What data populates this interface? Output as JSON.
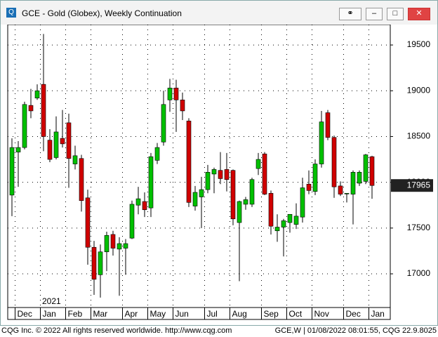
{
  "chart_data": {
    "type": "candlestick",
    "title": "GCE - Gold (Globex), Weekly Continuation",
    "footer_left": "CQG Inc. © 2022 All rights reserved worldwide. http://www.cqg.com",
    "footer_right": "GCE,W | 01/08/2022 08:01:55, CQG 22.9.8025",
    "year_label": "2021",
    "up_color": "#00c000",
    "down_color": "#d00000",
    "grid": true,
    "ylim": [
      16632,
      19723
    ],
    "yticks": [
      17000,
      17500,
      18000,
      18500,
      19000,
      19500
    ],
    "xticks": [
      {
        "value": 1,
        "label": "Dec"
      },
      {
        "value": 5,
        "label": "Jan"
      },
      {
        "value": 9,
        "label": "Feb"
      },
      {
        "value": 13,
        "label": "Mar"
      },
      {
        "value": 18,
        "label": "Apr"
      },
      {
        "value": 22,
        "label": "May"
      },
      {
        "value": 26,
        "label": "Jun"
      },
      {
        "value": 31,
        "label": "Jul"
      },
      {
        "value": 35,
        "label": "Aug"
      },
      {
        "value": 40,
        "label": "Sep"
      },
      {
        "value": 44,
        "label": "Oct"
      },
      {
        "value": 48,
        "label": "Nov"
      },
      {
        "value": 53,
        "label": "Dec"
      },
      {
        "value": 57,
        "label": "Jan"
      }
    ],
    "open": [
      17860,
      18330,
      18380,
      18840,
      18920,
      19070,
      18460,
      18270,
      18480,
      18650,
      18200,
      18260,
      17830,
      17290,
      16990,
      17240,
      17430,
      17270,
      17280,
      17390,
      17750,
      17790,
      17720,
      18240,
      18440,
      18900,
      19030,
      18900,
      18670,
      17740,
      17840,
      17920,
      18090,
      18130,
      18140,
      18130,
      17560,
      17760,
      17760,
      18150,
      18310,
      17880,
      17470,
      17510,
      17560,
      17540,
      17620,
      17980,
      17900,
      18200,
      18760,
      18490,
      17960,
      17880,
      17870,
      17990,
      18010,
      18280
    ],
    "high": [
      18480,
      18450,
      18880,
      19020,
      19070,
      19620,
      18580,
      18720,
      18790,
      18750,
      18400,
      18300,
      17920,
      17360,
      17320,
      17460,
      17470,
      17400,
      17380,
      17800,
      17950,
      17890,
      18320,
      18430,
      19000,
      19130,
      19120,
      18980,
      18700,
      17960,
      18060,
      18190,
      18160,
      18330,
      18320,
      18140,
      17800,
      17840,
      18050,
      18320,
      18330,
      17910,
      17650,
      17600,
      17650,
      17770,
      18050,
      18130,
      18250,
      18780,
      18790,
      18510,
      18010,
      17880,
      18130,
      18130,
      18310,
      18290
    ],
    "low": [
      17630,
      17950,
      18360,
      18700,
      18900,
      18340,
      18220,
      18250,
      18380,
      17940,
      18140,
      17680,
      17100,
      16770,
      16740,
      17030,
      17200,
      16760,
      16990,
      17380,
      17650,
      17620,
      17620,
      18200,
      18400,
      18770,
      18550,
      18680,
      17730,
      17690,
      17500,
      17880,
      17880,
      17980,
      17900,
      17530,
      16920,
      17700,
      17730,
      18080,
      17860,
      17430,
      17350,
      17190,
      17450,
      17490,
      17560,
      17870,
      17860,
      18160,
      18460,
      17830,
      17850,
      17780,
      17540,
      17960,
      17980,
      17820
    ],
    "close": [
      18380,
      18380,
      18850,
      18780,
      19000,
      18500,
      18250,
      18550,
      18420,
      18260,
      18290,
      17800,
      17290,
      16940,
      17240,
      17420,
      17280,
      17330,
      17330,
      17760,
      17820,
      17700,
      18280,
      18380,
      18850,
      19030,
      18900,
      18780,
      17780,
      17890,
      17920,
      18110,
      18140,
      18040,
      18030,
      17600,
      17790,
      17810,
      18030,
      18250,
      17870,
      17520,
      17510,
      17580,
      17650,
      17630,
      17940,
      17910,
      18200,
      18660,
      18490,
      17950,
      17870,
      17880,
      18110,
      18110,
      18300,
      17965
    ]
  }
}
